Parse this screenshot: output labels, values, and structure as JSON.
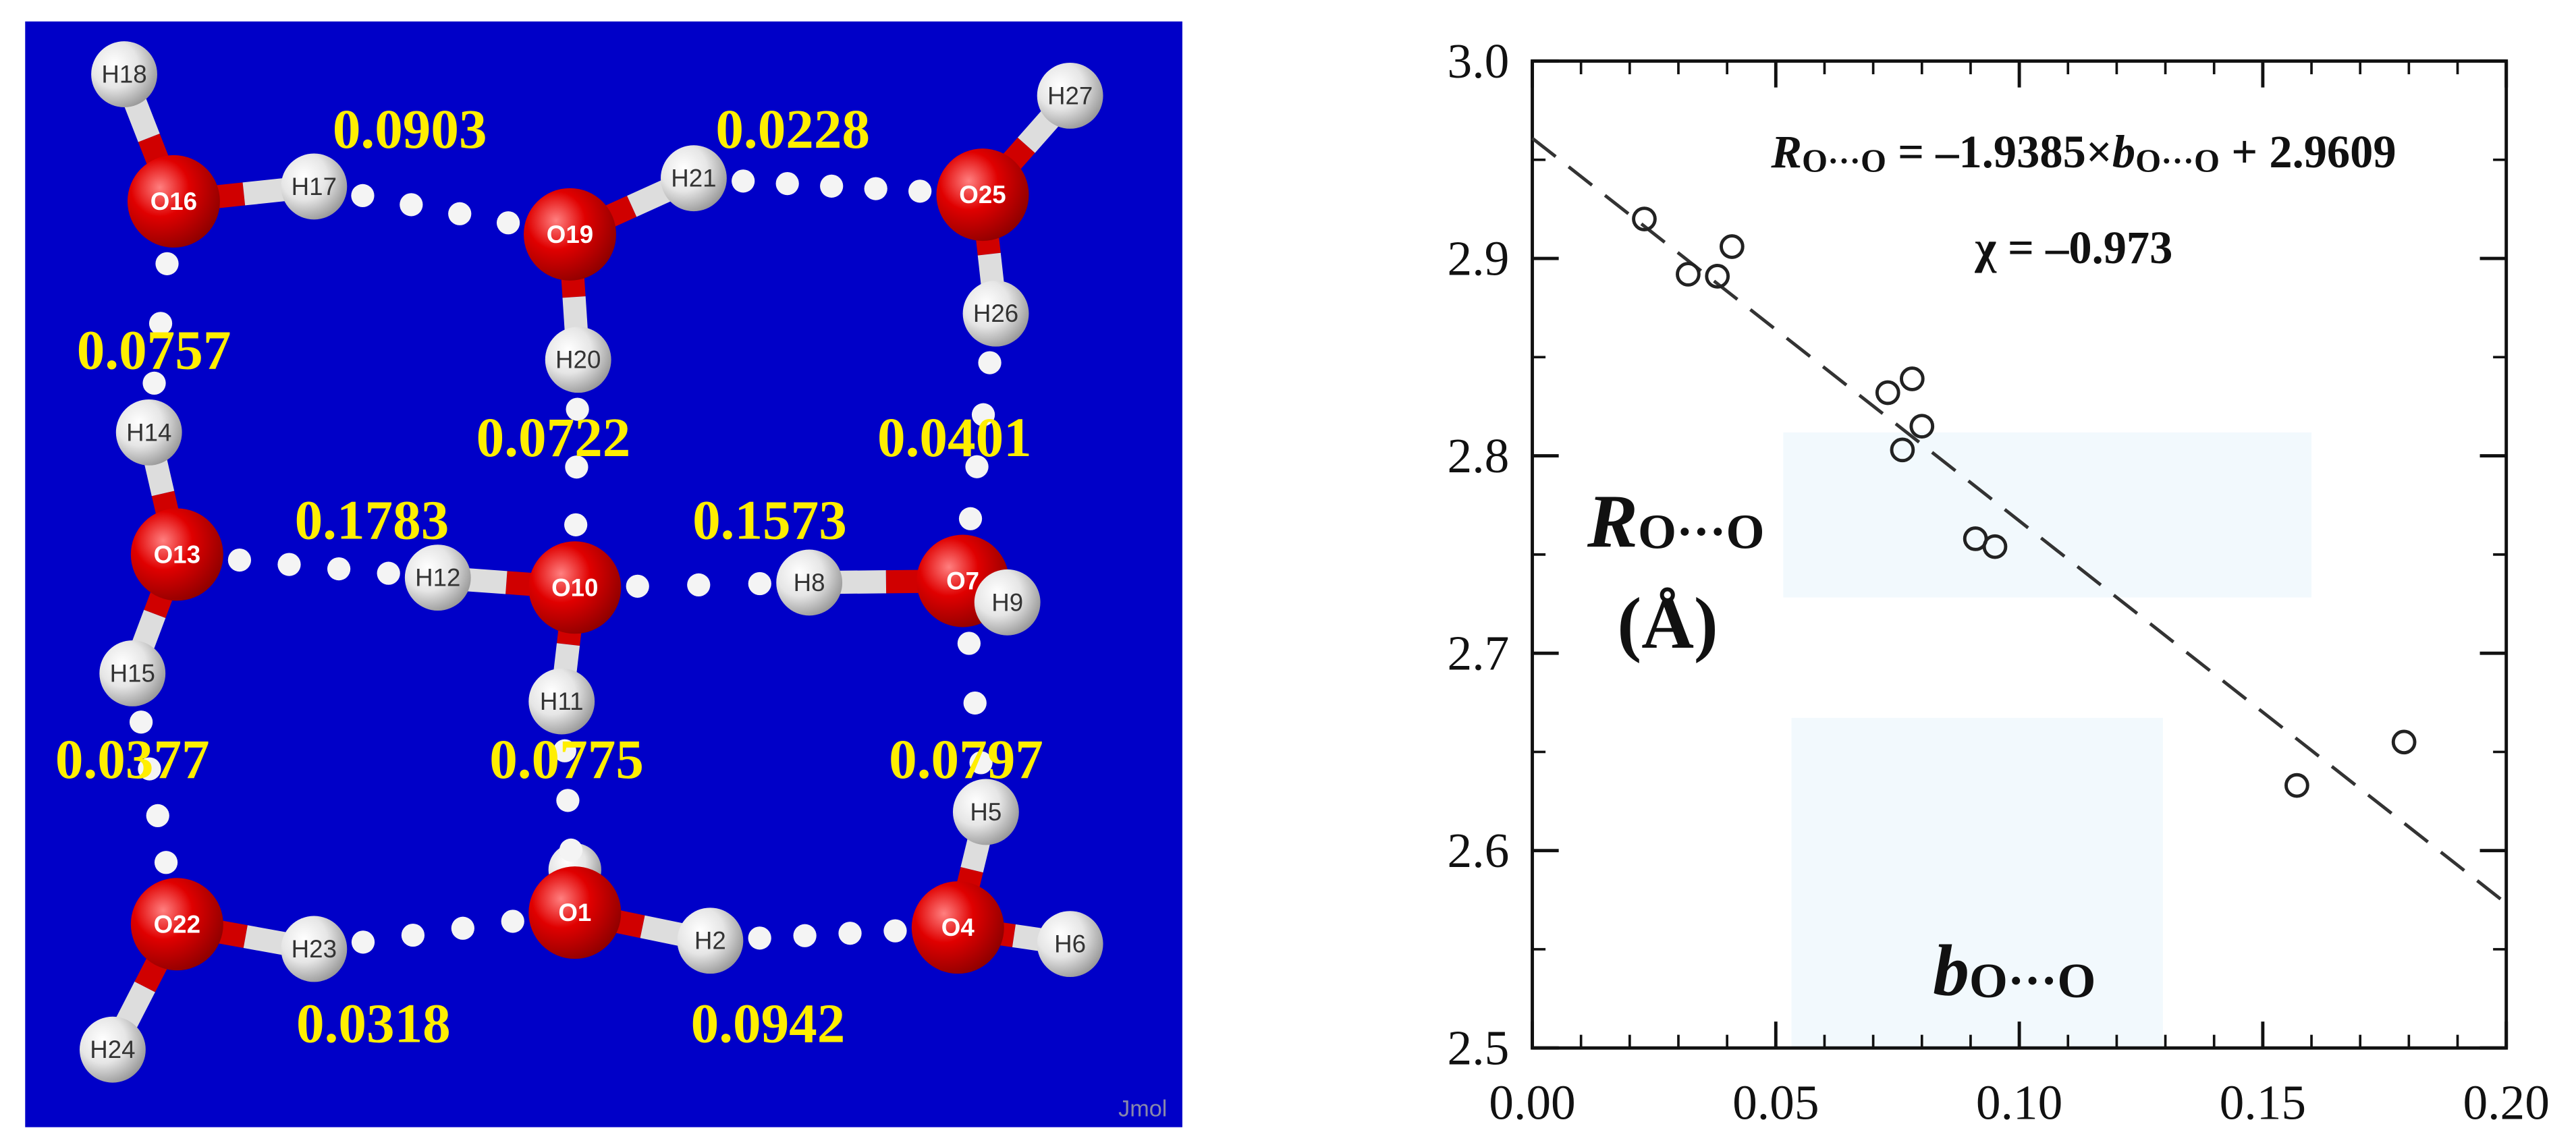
{
  "diagram": {
    "atoms": [
      "H18",
      "O16",
      "H17",
      "O19",
      "H21",
      "O25",
      "H27",
      "H26",
      "H20",
      "H14",
      "O13",
      "H12",
      "O10",
      "H8",
      "O7",
      "H9",
      "H15",
      "H11",
      "H5",
      "O22",
      "H23",
      "O1",
      "H2",
      "O4",
      "H6",
      "H24"
    ],
    "bond_orders": [
      "0.0903",
      "0.0228",
      "0.0757",
      "0.0722",
      "0.0401",
      "0.1783",
      "0.1573",
      "0.0377",
      "0.0775",
      "0.0797",
      "0.0318",
      "0.0942"
    ],
    "watermark": "Jmol"
  },
  "chart_data": {
    "type": "scatter",
    "x": [
      0.023,
      0.032,
      0.038,
      0.041,
      0.073,
      0.078,
      0.076,
      0.08,
      0.091,
      0.095,
      0.157,
      0.179
    ],
    "values": [
      2.92,
      2.892,
      2.891,
      2.906,
      2.832,
      2.839,
      2.803,
      2.815,
      2.758,
      2.754,
      2.633,
      2.655
    ],
    "color": "#222222",
    "xlim": [
      0,
      0.2
    ],
    "ylim": [
      2.5,
      3.0
    ],
    "xticks": [
      {
        "value": 0,
        "label": "0.00"
      },
      0.05,
      {
        "value": 0.1,
        "label": "0.10"
      },
      0.15,
      {
        "value": 0.2,
        "label": "0.20"
      }
    ],
    "yticks": [
      2.5,
      2.6,
      2.7,
      2.8,
      2.9,
      {
        "value": 3,
        "label": "3.0"
      }
    ],
    "fit": {
      "slope": -1.9385,
      "intercept": 2.9609,
      "color": "#333333"
    },
    "equation_parts": [
      "R",
      "O···O",
      " = ",
      "–1.9385",
      "×",
      "b",
      "O···O",
      " + ",
      "2.9609"
    ],
    "correlation": "χ = –0.973",
    "ylabel": [
      "R",
      "O···O",
      "(Å)"
    ],
    "xlabel": [
      "b",
      "O···O"
    ]
  }
}
